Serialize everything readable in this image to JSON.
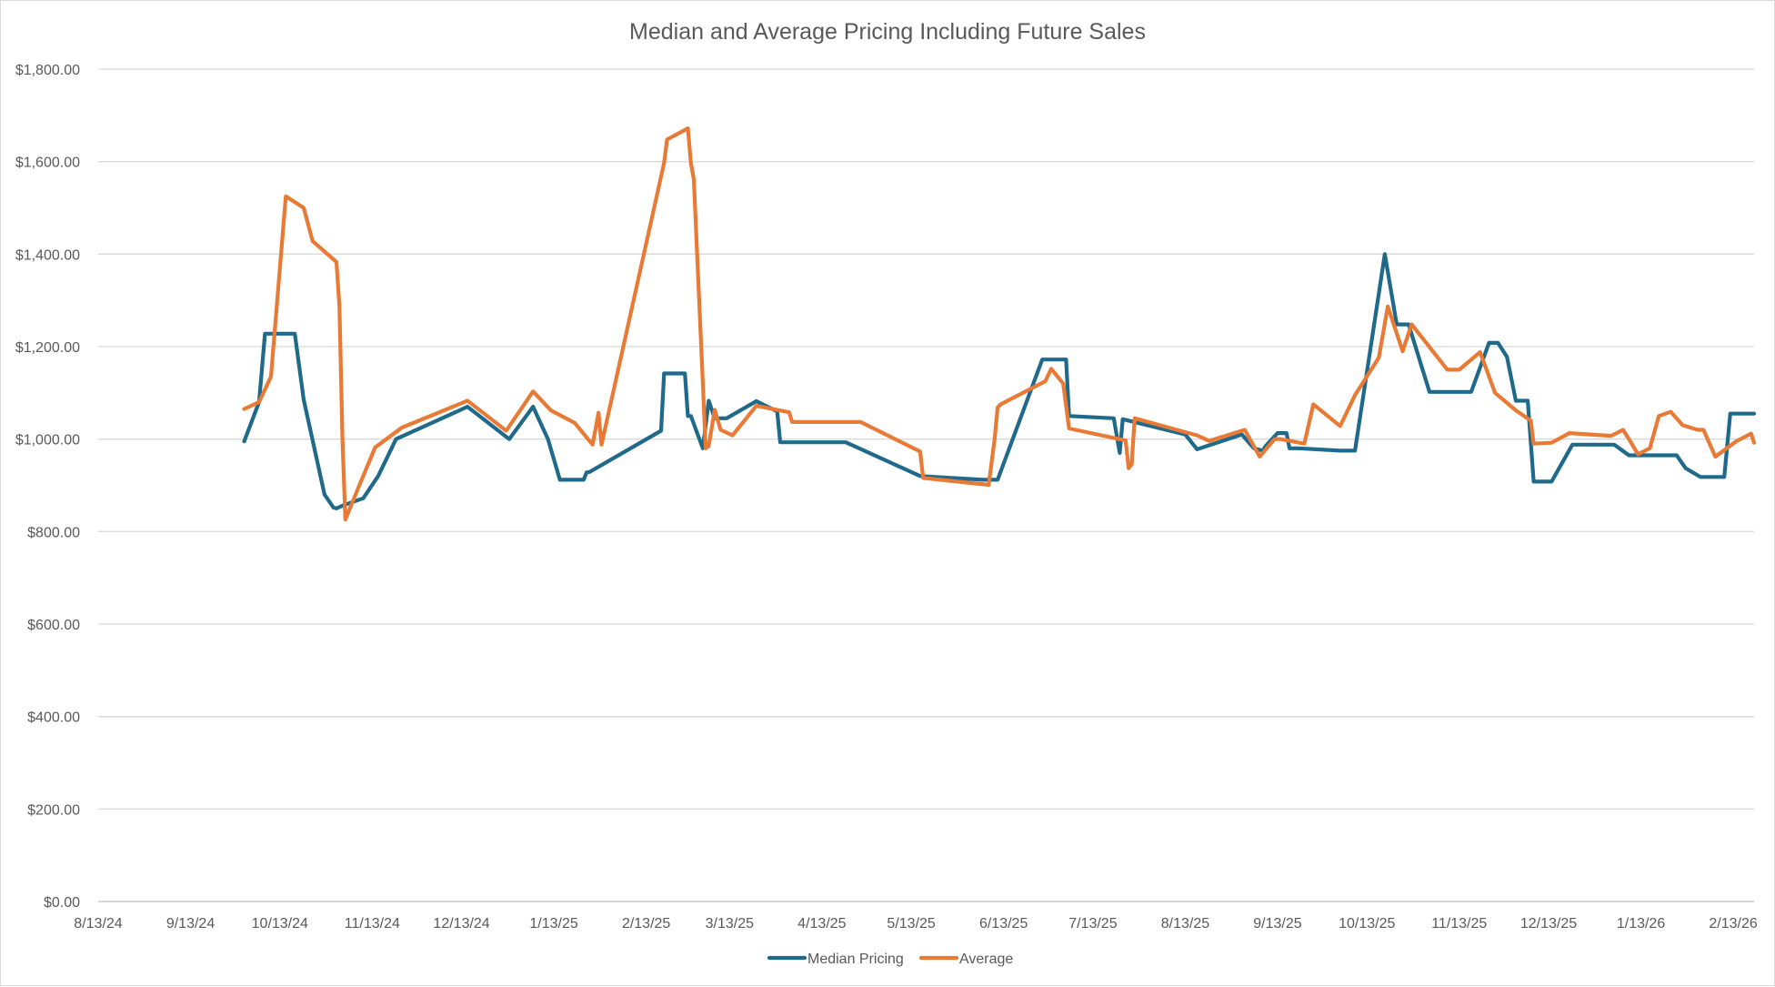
{
  "chart_data": {
    "type": "line",
    "title": "Median and Average Pricing Including Future Sales",
    "xlabel": "",
    "ylabel": "",
    "ylim": [
      0,
      1800
    ],
    "yticks": [
      0,
      200,
      400,
      600,
      800,
      1000,
      1200,
      1400,
      1600,
      1800
    ],
    "ytick_labels": [
      "$0.00",
      "$200.00",
      "$400.00",
      "$600.00",
      "$800.00",
      "$1,000.00",
      "$1,200.00",
      "$1,400.00",
      "$1,600.00",
      "$1,800.00"
    ],
    "xlim": [
      "2024-08-13",
      "2026-02-20"
    ],
    "xticks": [
      "2024-08-13",
      "2024-09-13",
      "2024-10-13",
      "2024-11-13",
      "2024-12-13",
      "2025-01-13",
      "2025-02-13",
      "2025-03-13",
      "2025-04-13",
      "2025-05-13",
      "2025-06-13",
      "2025-07-13",
      "2025-08-13",
      "2025-09-13",
      "2025-10-13",
      "2025-11-13",
      "2025-12-13",
      "2026-01-13",
      "2026-02-13"
    ],
    "xtick_labels": [
      "8/13/24",
      "9/13/24",
      "10/13/24",
      "11/13/24",
      "12/13/24",
      "1/13/25",
      "2/13/25",
      "3/13/25",
      "4/13/25",
      "5/13/25",
      "6/13/25",
      "7/13/25",
      "8/13/25",
      "9/13/25",
      "10/13/25",
      "11/13/25",
      "12/13/25",
      "1/13/26",
      "2/13/26"
    ],
    "grid": "horizontal",
    "legend_position": "bottom",
    "series": [
      {
        "name": "Median Pricing",
        "color": "#1F6A8A",
        "x": [
          "2024-10-01",
          "2024-10-06",
          "2024-10-08",
          "2024-10-13",
          "2024-10-18",
          "2024-10-21",
          "2024-10-28",
          "2024-10-31",
          "2024-11-01",
          "2024-11-03",
          "2024-11-10",
          "2024-11-15",
          "2024-11-21",
          "2024-12-15",
          "2024-12-29",
          "2025-01-06",
          "2025-01-11",
          "2025-01-15",
          "2025-01-23",
          "2025-01-24",
          "2025-01-25",
          "2025-02-18",
          "2025-02-19",
          "2025-02-26",
          "2025-02-27",
          "2025-02-28",
          "2025-03-04",
          "2025-03-06",
          "2025-03-08",
          "2025-03-12",
          "2025-03-22",
          "2025-03-29",
          "2025-03-30",
          "2025-04-21",
          "2025-05-16",
          "2025-06-06",
          "2025-06-11",
          "2025-06-26",
          "2025-07-04",
          "2025-07-05",
          "2025-07-20",
          "2025-07-22",
          "2025-07-23",
          "2025-08-13",
          "2025-08-17",
          "2025-09-01",
          "2025-09-05",
          "2025-09-08",
          "2025-09-09",
          "2025-09-13",
          "2025-09-16",
          "2025-09-17",
          "2025-09-20",
          "2025-10-04",
          "2025-10-09",
          "2025-10-19",
          "2025-10-23",
          "2025-10-27",
          "2025-11-03",
          "2025-11-17",
          "2025-11-23",
          "2025-11-26",
          "2025-11-29",
          "2025-12-02",
          "2025-12-06",
          "2025-12-08",
          "2025-12-14",
          "2025-12-21",
          "2026-01-04",
          "2026-01-09",
          "2026-01-25",
          "2026-01-28",
          "2026-02-02",
          "2026-02-10",
          "2026-02-12",
          "2026-02-20"
        ],
        "values": [
          995,
          1080,
          1228,
          1228,
          1228,
          1085,
          880,
          852,
          850,
          856,
          872,
          920,
          1000,
          1070,
          1000,
          1070,
          1000,
          912,
          912,
          928,
          929,
          1018,
          1142,
          1142,
          1050,
          1050,
          980,
          1083,
          1045,
          1045,
          1082,
          1060,
          993,
          993,
          920,
          912,
          912,
          1172,
          1172,
          1050,
          1045,
          970,
          1043,
          1010,
          978,
          1010,
          980,
          975,
          985,
          1013,
          1013,
          980,
          980,
          975,
          975,
          1400,
          1248,
          1248,
          1102,
          1102,
          1208,
          1208,
          1178,
          1083,
          1083,
          908,
          908,
          988,
          988,
          965,
          965,
          937,
          918,
          918,
          1055,
          1055
        ]
      },
      {
        "name": "Average",
        "color": "#E97A35",
        "x": [
          "2024-10-01",
          "2024-10-06",
          "2024-10-10",
          "2024-10-15",
          "2024-10-21",
          "2024-10-24",
          "2024-11-01",
          "2024-11-02",
          "2024-11-03",
          "2024-11-04",
          "2024-11-09",
          "2024-11-14",
          "2024-11-23",
          "2024-12-15",
          "2024-12-28",
          "2025-01-06",
          "2025-01-12",
          "2025-01-20",
          "2025-01-26",
          "2025-01-28",
          "2025-01-29",
          "2025-02-19",
          "2025-02-20",
          "2025-02-27",
          "2025-02-28",
          "2025-03-01",
          "2025-03-05",
          "2025-03-06",
          "2025-03-08",
          "2025-03-10",
          "2025-03-14",
          "2025-03-22",
          "2025-04-02",
          "2025-04-03",
          "2025-04-26",
          "2025-05-16",
          "2025-05-17",
          "2025-06-08",
          "2025-06-10",
          "2025-06-11",
          "2025-06-12",
          "2025-06-27",
          "2025-06-29",
          "2025-07-03",
          "2025-07-05",
          "2025-07-24",
          "2025-07-25",
          "2025-07-26",
          "2025-07-27",
          "2025-08-17",
          "2025-08-21",
          "2025-09-02",
          "2025-09-07",
          "2025-09-12",
          "2025-09-14",
          "2025-09-22",
          "2025-09-25",
          "2025-10-04",
          "2025-10-09",
          "2025-10-17",
          "2025-10-20",
          "2025-10-25",
          "2025-10-28",
          "2025-11-09",
          "2025-11-13",
          "2025-11-20",
          "2025-11-25",
          "2025-12-02",
          "2025-12-07",
          "2025-12-08",
          "2025-12-14",
          "2025-12-20",
          "2026-01-03",
          "2026-01-07",
          "2026-01-09",
          "2026-01-12",
          "2026-01-16",
          "2026-01-19",
          "2026-01-23",
          "2026-01-27",
          "2026-02-01",
          "2026-02-03",
          "2026-02-07",
          "2026-02-14",
          "2026-02-19",
          "2026-02-20"
        ],
        "values": [
          1065,
          1080,
          1135,
          1525,
          1500,
          1428,
          1383,
          1287,
          1000,
          826,
          905,
          982,
          1025,
          1083,
          1018,
          1103,
          1062,
          1035,
          988,
          1057,
          988,
          1597,
          1648,
          1672,
          1597,
          1562,
          980,
          985,
          1063,
          1020,
          1008,
          1072,
          1058,
          1037,
          1037,
          973,
          916,
          901,
          1000,
          1068,
          1075,
          1125,
          1152,
          1120,
          1023,
          997,
          937,
          945,
          1045,
          1008,
          996,
          1020,
          962,
          1000,
          1000,
          990,
          1075,
          1028,
          1095,
          1176,
          1287,
          1190,
          1248,
          1150,
          1150,
          1188,
          1100,
          1062,
          1040,
          990,
          992,
          1013,
          1007,
          1020,
          1000,
          967,
          980,
          1050,
          1059,
          1030,
          1020,
          1020,
          962,
          995,
          1012,
          992
        ]
      }
    ]
  }
}
